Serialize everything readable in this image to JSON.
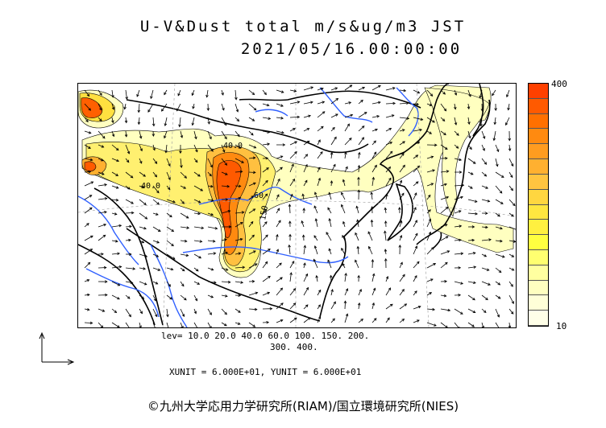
{
  "title_line1": "U-V&Dust total m/s&ug/m3 JST",
  "title_line2": "2021/05/16.00:00:00",
  "colorbar": {
    "max_label": "400",
    "min_label": "10",
    "colors": [
      "#ff4000",
      "#ff5a00",
      "#ff7000",
      "#ff8a10",
      "#ff9c20",
      "#ffb030",
      "#ffc440",
      "#ffd640",
      "#ffe640",
      "#fff040",
      "#ffff40",
      "#ffff70",
      "#ffffa0",
      "#ffffc0",
      "#ffffd8",
      "#ffffe8"
    ]
  },
  "levels_line1": "lev= 10.0 20.0 40.0 60.0 100. 150. 200.",
  "levels_line2": "300. 400.",
  "units_text": "XUNIT = 6.000E+01, YUNIT = 6.000E+01",
  "contour_labels": [
    "40.0",
    "40.0",
    "60",
    "150"
  ],
  "credit": "©九州大学応用力学研究所(RIAM)/国立環境研究所(NIES)"
}
